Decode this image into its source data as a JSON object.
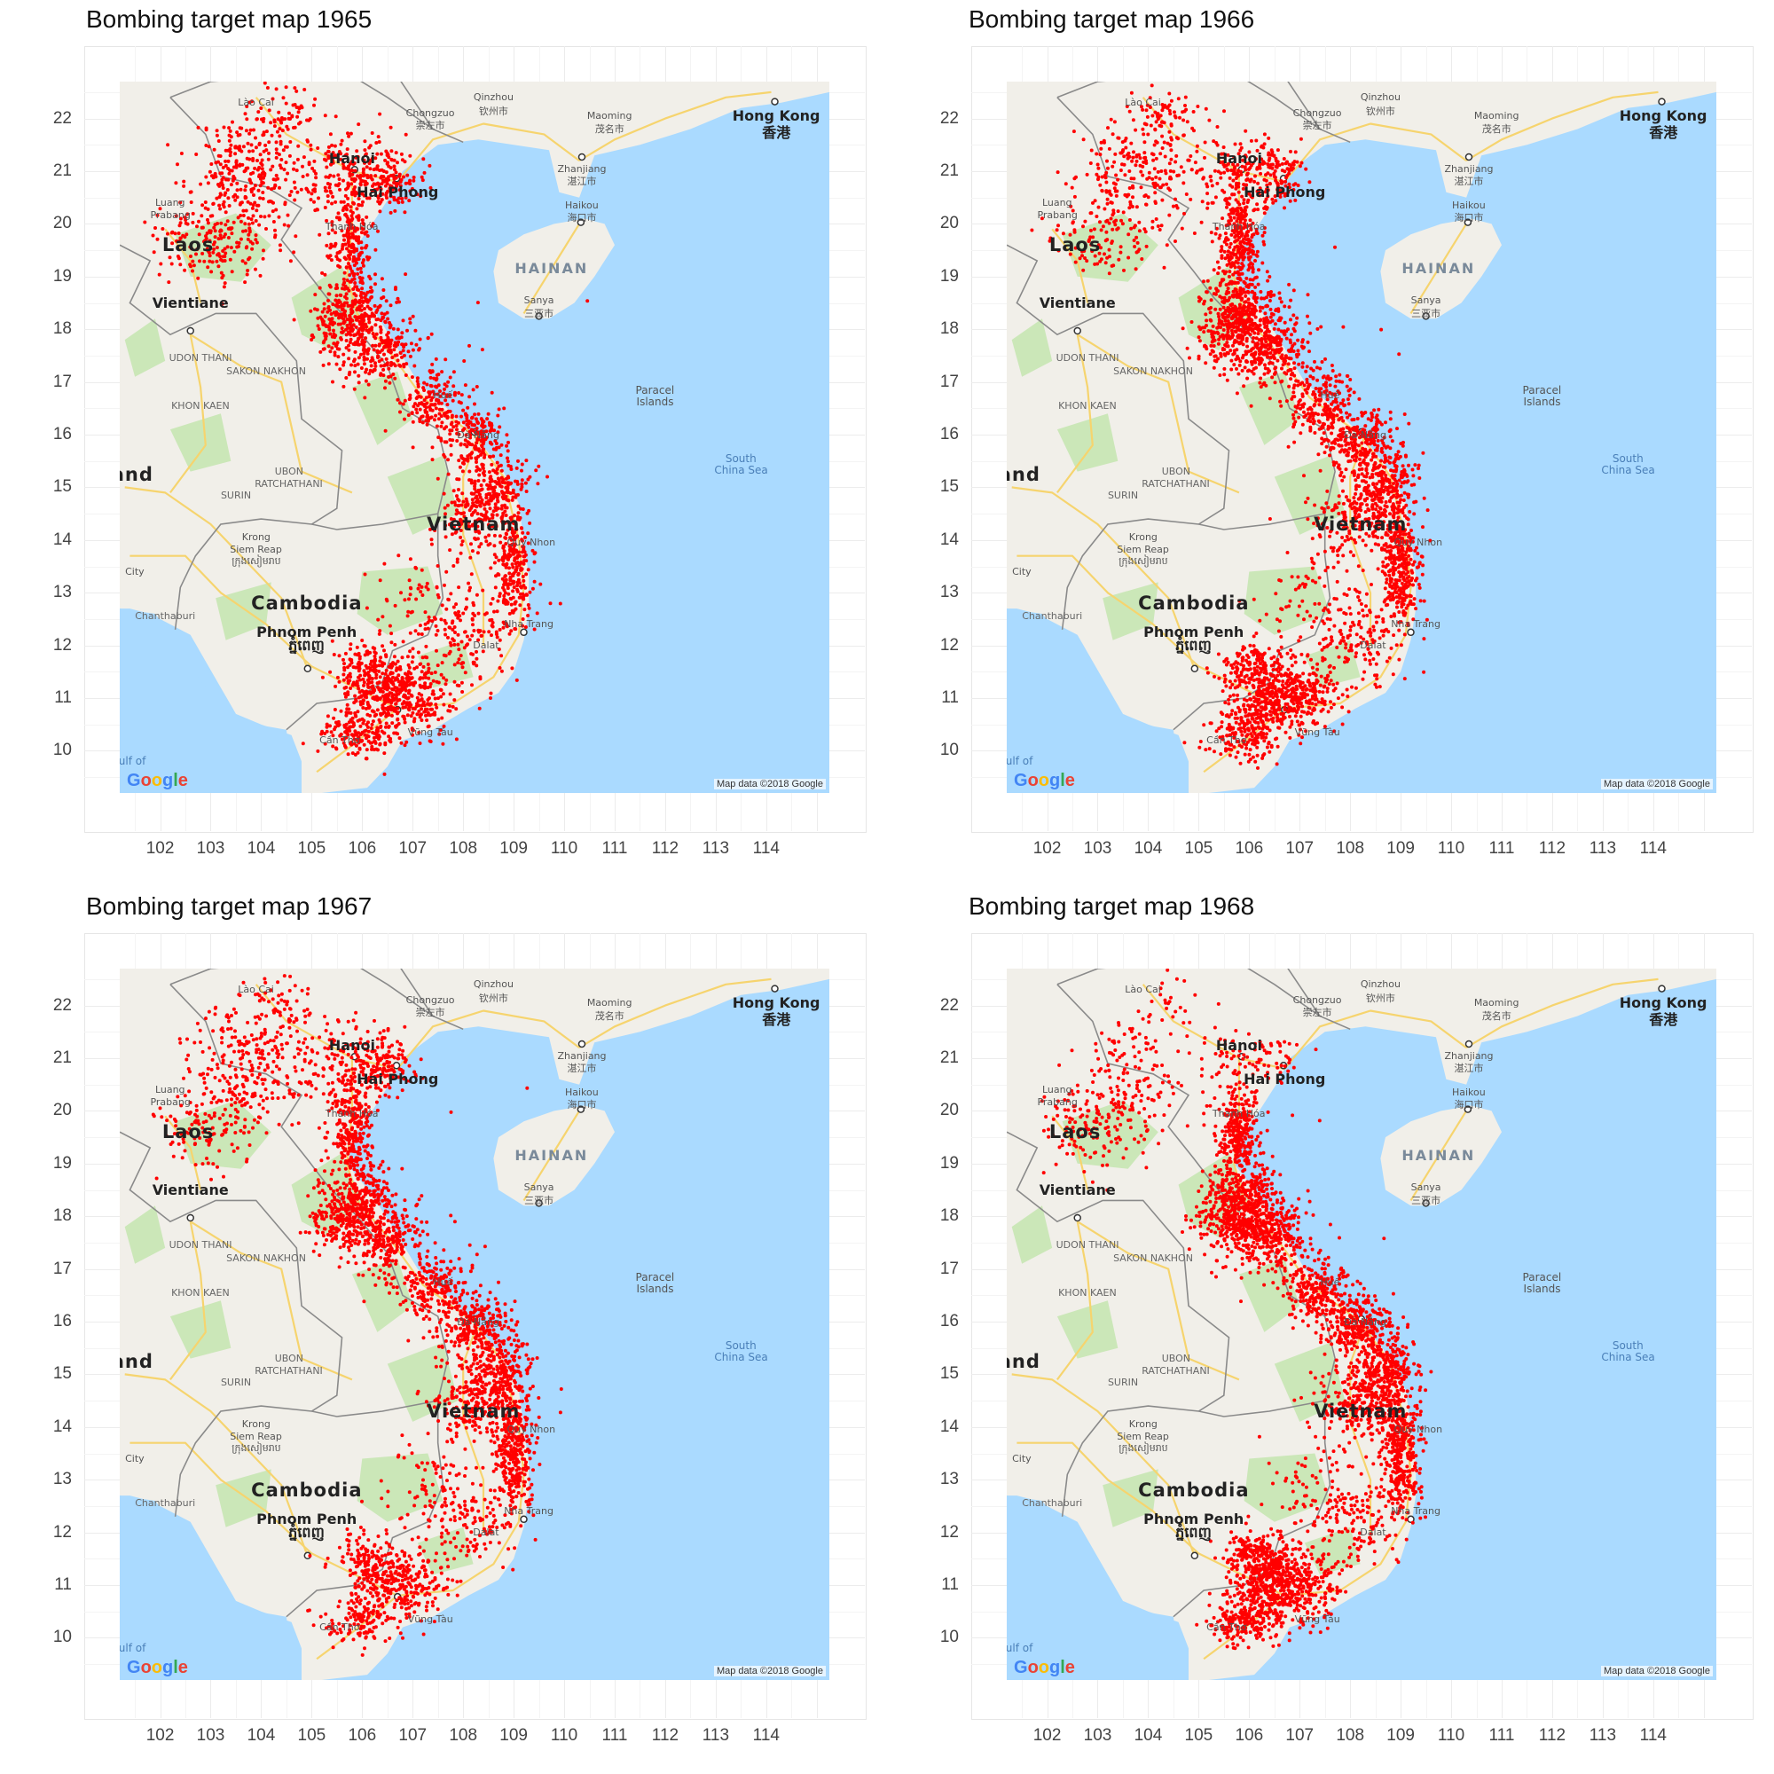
{
  "panels": [
    {
      "title": "Bombing target map 1965",
      "year": 1965,
      "dx": 0,
      "dy": 0,
      "seed": 11,
      "profile": {
        "north": 1.3,
        "laos": 1.2,
        "pan": 1.0,
        "cent": 0.9,
        "south": 1.0,
        "delta": 1.0,
        "sea": 0.2
      }
    },
    {
      "title": "Bombing target map 1966",
      "year": 1966,
      "dx": 1,
      "dy": 0,
      "seed": 23,
      "profile": {
        "north": 1.1,
        "laos": 0.7,
        "pan": 1.4,
        "cent": 1.2,
        "south": 1.0,
        "delta": 1.1,
        "sea": 0.2
      }
    },
    {
      "title": "Bombing target map 1967",
      "year": 1967,
      "dx": 0,
      "dy": 1,
      "seed": 37,
      "profile": {
        "north": 1.1,
        "laos": 0.9,
        "pan": 1.3,
        "cent": 1.2,
        "south": 0.9,
        "delta": 0.7,
        "sea": 0.2
      }
    },
    {
      "title": "Bombing target map 1968",
      "year": 1968,
      "dx": 1,
      "dy": 1,
      "seed": 53,
      "profile": {
        "north": 0.4,
        "laos": 1.0,
        "pan": 1.6,
        "cent": 1.4,
        "south": 0.9,
        "delta": 1.3,
        "sea": 0.1
      }
    }
  ],
  "x_ticks": [
    "102",
    "103",
    "104",
    "105",
    "106",
    "107",
    "108",
    "109",
    "110",
    "111",
    "112",
    "113",
    "114"
  ],
  "y_ticks": [
    "10",
    "11",
    "12",
    "13",
    "14",
    "15",
    "16",
    "17",
    "18",
    "19",
    "20",
    "21",
    "22"
  ],
  "map_labels": [
    {
      "text": "Lào Cai",
      "lon": 103.9,
      "lat": 22.3,
      "cls": "small"
    },
    {
      "text": "Qinzhou",
      "lon": 108.6,
      "lat": 22.4,
      "cls": "small"
    },
    {
      "text": "钦州市",
      "lon": 108.6,
      "lat": 22.15,
      "cls": "small"
    },
    {
      "text": "Chongzuo",
      "lon": 107.35,
      "lat": 22.1,
      "cls": "small"
    },
    {
      "text": "崇左市",
      "lon": 107.35,
      "lat": 21.88,
      "cls": "small"
    },
    {
      "text": "Maoming",
      "lon": 110.9,
      "lat": 22.05,
      "cls": "small"
    },
    {
      "text": "茂名市",
      "lon": 110.9,
      "lat": 21.8,
      "cls": "small"
    },
    {
      "text": "Hong Kong",
      "lon": 114.2,
      "lat": 22.05,
      "cls": "city"
    },
    {
      "text": "香港",
      "lon": 114.2,
      "lat": 21.75,
      "cls": "city"
    },
    {
      "text": "Hanoi",
      "lon": 105.8,
      "lat": 21.25,
      "cls": "city"
    },
    {
      "text": "Hai Phong",
      "lon": 106.7,
      "lat": 20.6,
      "cls": "city"
    },
    {
      "text": "Zhanjiang",
      "lon": 110.35,
      "lat": 21.05,
      "cls": "small"
    },
    {
      "text": "湛江市",
      "lon": 110.35,
      "lat": 20.82,
      "cls": "small"
    },
    {
      "text": "Haikou",
      "lon": 110.35,
      "lat": 20.35,
      "cls": "small"
    },
    {
      "text": "海口市",
      "lon": 110.35,
      "lat": 20.12,
      "cls": "small"
    },
    {
      "text": "Luang",
      "lon": 102.2,
      "lat": 20.4,
      "cls": "small"
    },
    {
      "text": "Prabang",
      "lon": 102.2,
      "lat": 20.17,
      "cls": "small"
    },
    {
      "text": "Thanh Hóa",
      "lon": 105.8,
      "lat": 19.95,
      "cls": "small"
    },
    {
      "text": "Laos",
      "lon": 102.55,
      "lat": 19.6,
      "cls": "country"
    },
    {
      "text": "HAINAN",
      "lon": 109.75,
      "lat": 19.15,
      "cls": "hainan"
    },
    {
      "text": "Sanya",
      "lon": 109.5,
      "lat": 18.55,
      "cls": "small"
    },
    {
      "text": "三亚市",
      "lon": 109.5,
      "lat": 18.3,
      "cls": "small"
    },
    {
      "text": "Vientiane",
      "lon": 102.6,
      "lat": 18.5,
      "cls": "city"
    },
    {
      "text": "UDON THANI",
      "lon": 102.8,
      "lat": 17.45,
      "cls": "region"
    },
    {
      "text": "SAKON NAKHON",
      "lon": 104.1,
      "lat": 17.2,
      "cls": "region"
    },
    {
      "text": "KHON KAEN",
      "lon": 102.8,
      "lat": 16.55,
      "cls": "region"
    },
    {
      "text": "Huế",
      "lon": 107.6,
      "lat": 16.75,
      "cls": "small"
    },
    {
      "text": "Paracel",
      "lon": 111.8,
      "lat": 16.85,
      "cls": "island"
    },
    {
      "text": "Islands",
      "lon": 111.8,
      "lat": 16.62,
      "cls": "island"
    },
    {
      "text": "Đà Nẵng",
      "lon": 108.3,
      "lat": 16.0,
      "cls": "small"
    },
    {
      "text": "South",
      "lon": 113.5,
      "lat": 15.55,
      "cls": "sea"
    },
    {
      "text": "China Sea",
      "lon": 113.5,
      "lat": 15.32,
      "cls": "sea"
    },
    {
      "text": "and",
      "lon": 101.45,
      "lat": 15.25,
      "cls": "country"
    },
    {
      "text": "UBON",
      "lon": 104.55,
      "lat": 15.3,
      "cls": "region"
    },
    {
      "text": "RATCHATHANI",
      "lon": 104.55,
      "lat": 15.07,
      "cls": "region"
    },
    {
      "text": "SURIN",
      "lon": 103.5,
      "lat": 14.85,
      "cls": "region"
    },
    {
      "text": "Vietnam",
      "lon": 108.2,
      "lat": 14.3,
      "cls": "country"
    },
    {
      "text": "Quy Nhon",
      "lon": 109.35,
      "lat": 13.95,
      "cls": "small"
    },
    {
      "text": "Krong",
      "lon": 103.9,
      "lat": 14.05,
      "cls": "small"
    },
    {
      "text": "Siem Reap",
      "lon": 103.9,
      "lat": 13.82,
      "cls": "small"
    },
    {
      "text": "ក្រុងសៀមរាប",
      "lon": 103.9,
      "lat": 13.58,
      "cls": "small"
    },
    {
      "text": "City",
      "lon": 101.5,
      "lat": 13.4,
      "cls": "small"
    },
    {
      "text": "Cambodia",
      "lon": 104.9,
      "lat": 12.8,
      "cls": "country"
    },
    {
      "text": "Nha Trang",
      "lon": 109.3,
      "lat": 12.4,
      "cls": "small"
    },
    {
      "text": "Chanthaburi",
      "lon": 102.1,
      "lat": 12.55,
      "cls": "region"
    },
    {
      "text": "Phnom Penh",
      "lon": 104.9,
      "lat": 12.25,
      "cls": "city"
    },
    {
      "text": "ភ្នំពេញ",
      "lon": 104.9,
      "lat": 11.98,
      "cls": "city"
    },
    {
      "text": "Dalat",
      "lon": 108.45,
      "lat": 12.0,
      "cls": "small"
    },
    {
      "text": "Vũng Tàu",
      "lon": 107.35,
      "lat": 10.35,
      "cls": "small"
    },
    {
      "text": "Cần Thơ",
      "lon": 105.55,
      "lat": 10.2,
      "cls": "small"
    },
    {
      "text": "ulf of",
      "lon": 101.45,
      "lat": 9.8,
      "cls": "sea"
    }
  ],
  "attribution": "Map data ©2018 Google",
  "logo_text": "Google",
  "colors": {
    "water": "#aadaff",
    "land": "#f1efe9",
    "park": "#c6e6b3",
    "road": "#f6d46e",
    "border": "#8a8a8a",
    "point": "#ff0000"
  }
}
